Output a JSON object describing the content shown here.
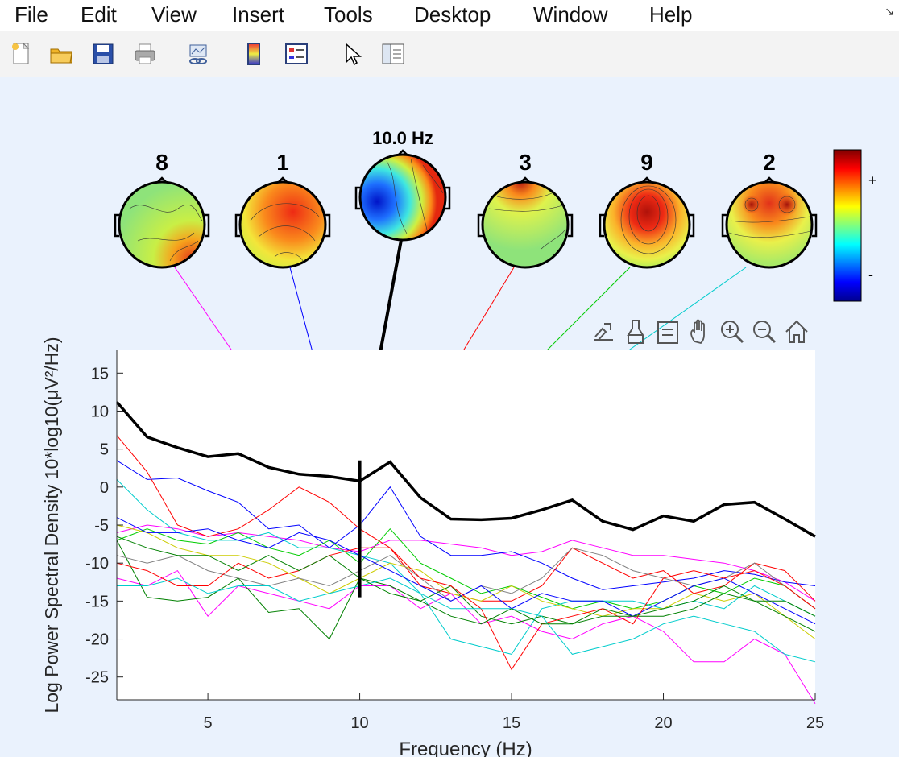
{
  "menu": {
    "items": [
      "File",
      "Edit",
      "View",
      "Insert",
      "Tools",
      "Desktop",
      "Window",
      "Help"
    ]
  },
  "toolbar": {
    "icons": [
      "new-file-icon",
      "open-folder-icon",
      "save-icon",
      "print-icon",
      "link-plot-icon",
      "colorbar-icon",
      "legend-icon",
      "pointer-icon",
      "property-inspector-icon"
    ]
  },
  "axes_toolbar": {
    "icons": [
      "brush-export-icon",
      "data-brush-icon",
      "data-tip-icon",
      "pan-icon",
      "zoom-in-icon",
      "zoom-out-icon",
      "home-icon"
    ]
  },
  "topomaps": {
    "labels": [
      "8",
      "1",
      "10.0 Hz",
      "3",
      "9",
      "2"
    ],
    "colorbar": {
      "plus": "+",
      "minus": "-"
    }
  },
  "chart_data": {
    "type": "line",
    "xlabel": "Frequency (Hz)",
    "ylabel": "Log Power Spectral Density 10*log10(μV²/Hz)",
    "xlim": [
      2,
      25
    ],
    "ylim": [
      -28,
      18
    ],
    "xticks": [
      5,
      10,
      15,
      20,
      25
    ],
    "yticks": [
      15,
      10,
      5,
      0,
      -5,
      -10,
      -15,
      -20,
      -25
    ],
    "x": [
      2,
      3,
      4,
      5,
      6,
      7,
      8,
      9,
      10,
      11,
      12,
      13,
      14,
      15,
      16,
      17,
      18,
      19,
      20,
      21,
      22,
      23,
      24,
      25
    ],
    "marker_frequency": 10,
    "marker_range": [
      -14.5,
      3.5
    ],
    "series": [
      {
        "color": "#000000",
        "width": 3.5,
        "values": [
          11.2,
          6.6,
          5.2,
          4,
          4.4,
          2.6,
          1.7,
          1.4,
          0.8,
          3.3,
          -1.4,
          -4.2,
          -4.3,
          -4.1,
          -3,
          -1.7,
          -4.5,
          -5.6,
          -3.8,
          -4.5,
          -2.3,
          -2,
          -4.2,
          -6.5
        ]
      },
      {
        "color": "#ff00ff",
        "width": 1,
        "values": [
          -6,
          -5,
          -5.5,
          -6.5,
          -6,
          -6.5,
          -7,
          -8,
          -8.5,
          -7,
          -7,
          -7.5,
          -8,
          -9,
          -8.5,
          -7,
          -8,
          -9,
          -9,
          -9.5,
          -10,
          -11,
          -12.5,
          -15
        ]
      },
      {
        "color": "#0000ff",
        "width": 1,
        "values": [
          3.5,
          1,
          1.2,
          -0.5,
          -2,
          -5.5,
          -5,
          -8,
          -5,
          0,
          -6.5,
          -9,
          -9,
          -8.5,
          -10,
          -12,
          -13.5,
          -13,
          -12.5,
          -12,
          -11,
          -11.5,
          -12.5,
          -13
        ]
      },
      {
        "color": "#ff0000",
        "width": 1,
        "values": [
          6.8,
          2,
          -5,
          -6.5,
          -5.5,
          -3,
          0,
          -2,
          -5.5,
          -8,
          -13,
          -14,
          -15,
          -15,
          -13,
          -8,
          -10,
          -12,
          -11,
          -14,
          -13,
          -10,
          -11,
          -15
        ]
      },
      {
        "color": "#00cc00",
        "width": 1,
        "values": [
          -7,
          -5.5,
          -7,
          -7.5,
          -6,
          -8,
          -9,
          -7,
          -10,
          -5.5,
          -10,
          -12,
          -14,
          -13,
          -14.5,
          -16,
          -15,
          -16,
          -15,
          -13,
          -14,
          -12,
          -13,
          -16
        ]
      },
      {
        "color": "#00cccc",
        "width": 1,
        "values": [
          1,
          -3,
          -6,
          -7,
          -7,
          -6,
          -8,
          -8,
          -9,
          -10,
          -14,
          -20,
          -21,
          -22,
          -16,
          -15,
          -15,
          -15,
          -16,
          -15,
          -16,
          -13,
          -15,
          -17
        ]
      },
      {
        "color": "#cccc00",
        "width": 1,
        "values": [
          -5,
          -6,
          -8,
          -9,
          -9,
          -10,
          -12,
          -14,
          -12,
          -10,
          -11,
          -14,
          -15,
          -13,
          -15,
          -16,
          -17,
          -16,
          -16,
          -14,
          -15,
          -14,
          -17,
          -20
        ]
      },
      {
        "color": "#808080",
        "width": 1,
        "values": [
          -9,
          -10,
          -9,
          -11,
          -12,
          -13,
          -12,
          -13,
          -11,
          -9,
          -12,
          -15,
          -13,
          -14,
          -12,
          -8,
          -9,
          -11,
          -12,
          -13,
          -12,
          -10,
          -13,
          -16
        ]
      },
      {
        "color": "#ff00ff",
        "width": 1,
        "values": [
          -12,
          -13,
          -11,
          -17,
          -13,
          -14,
          -15,
          -16,
          -13,
          -13,
          -16,
          -14,
          -18,
          -17,
          -19,
          -20,
          -18,
          -17,
          -19,
          -23,
          -23,
          -20,
          -22,
          -28.5
        ]
      },
      {
        "color": "#008000",
        "width": 1,
        "values": [
          -7,
          -14.5,
          -15,
          -14.5,
          -12,
          -16.5,
          -16,
          -20,
          -12,
          -13,
          -15,
          -13,
          -17,
          -18,
          -17,
          -18,
          -16,
          -17,
          -17,
          -16,
          -14,
          -15,
          -17,
          -19
        ]
      },
      {
        "color": "#0000ff",
        "width": 1,
        "values": [
          -4,
          -6,
          -6,
          -5.5,
          -7,
          -8,
          -6,
          -7,
          -9,
          -11,
          -13,
          -15,
          -13,
          -16,
          -14,
          -15,
          -15,
          -17,
          -15,
          -13,
          -12,
          -14,
          -16,
          -18
        ]
      },
      {
        "color": "#ff0000",
        "width": 1,
        "values": [
          -10,
          -11,
          -13,
          -13,
          -10,
          -12,
          -11,
          -9,
          -8,
          -8,
          -12,
          -13,
          -16,
          -24,
          -18,
          -17,
          -16,
          -18,
          -12,
          -11,
          -12,
          -11,
          -13,
          -16
        ]
      },
      {
        "color": "#00cccc",
        "width": 1,
        "values": [
          -13,
          -13,
          -12,
          -14,
          -13,
          -13,
          -15,
          -14,
          -13,
          -12,
          -14,
          -16,
          -16,
          -16,
          -17,
          -22,
          -21,
          -20,
          -18,
          -17,
          -18,
          -19,
          -22,
          -23
        ]
      },
      {
        "color": "#008000",
        "width": 1,
        "values": [
          -6.5,
          -8,
          -9,
          -9,
          -11,
          -9,
          -11,
          -9,
          -12,
          -14,
          -15,
          -17,
          -18,
          -16,
          -18,
          -18,
          -17,
          -17,
          -16,
          -15,
          -13,
          -15,
          -15,
          -17
        ]
      }
    ]
  }
}
